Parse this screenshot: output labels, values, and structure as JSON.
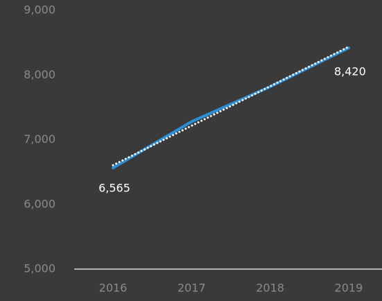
{
  "chart_data": {
    "type": "line",
    "categories": [
      "2016",
      "2017",
      "2018",
      "2019"
    ],
    "series": [
      {
        "color": "#2b8fd8",
        "values": [
          6565,
          7280,
          7820,
          8420
        ],
        "value_labels": [
          "6,565",
          null,
          null,
          "8,420"
        ]
      }
    ],
    "ylim": [
      5000,
      9000
    ],
    "yticks": [
      {
        "value": 5000,
        "label": "5,000"
      },
      {
        "value": 6000,
        "label": "6,000"
      },
      {
        "value": 7000,
        "label": "7,000"
      },
      {
        "value": 8000,
        "label": "8,000"
      },
      {
        "value": 9000,
        "label": "9,000"
      }
    ],
    "grid": false,
    "trendline": true,
    "trendline_color": "#ffffff"
  }
}
